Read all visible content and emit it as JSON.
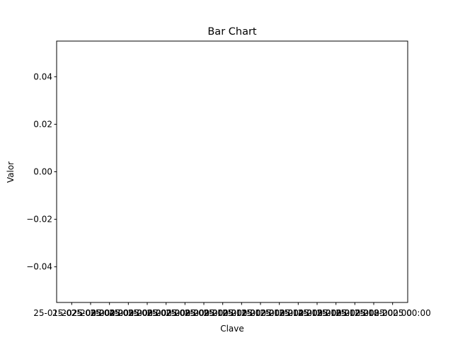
{
  "chart_data": {
    "type": "bar",
    "title": "Bar Chart",
    "xlabel": "Clave",
    "ylabel": "Valor",
    "ylim": [
      -0.055,
      0.055
    ],
    "yticks": [
      -0.04,
      -0.02,
      0.0,
      0.02,
      0.04
    ],
    "ytick_labels": [
      "−0.04",
      "−0.02",
      "0.00",
      "0.02",
      "0.04"
    ],
    "categories": [
      "25-01-2025 00:00",
      "25-02-2025 00:00",
      "25-03-2025 00:00",
      "25-04-2025 00:00",
      "25-05-2025 00:00",
      "25-06-2025 00:00",
      "25-07-2025 00:00",
      "25-08-2025 00:00",
      "25-09-2025 00:00",
      "25-10-2025 00:00",
      "25-11-2025 00:00",
      "25-12-2025 00:00",
      "25-13-2025 00:00",
      "25-14-2025 00:00",
      "25-15-2025 00:00",
      "25-16-2025 00:00",
      "25-17-2025 00:00",
      "25-18-2025 00:00"
    ],
    "values": [
      0,
      0,
      0,
      0,
      0,
      0,
      0,
      0,
      0,
      0,
      0,
      0,
      0,
      0,
      0,
      0,
      0,
      0
    ],
    "bar_color": "#1f77b4",
    "grid": false,
    "legend": "none"
  }
}
